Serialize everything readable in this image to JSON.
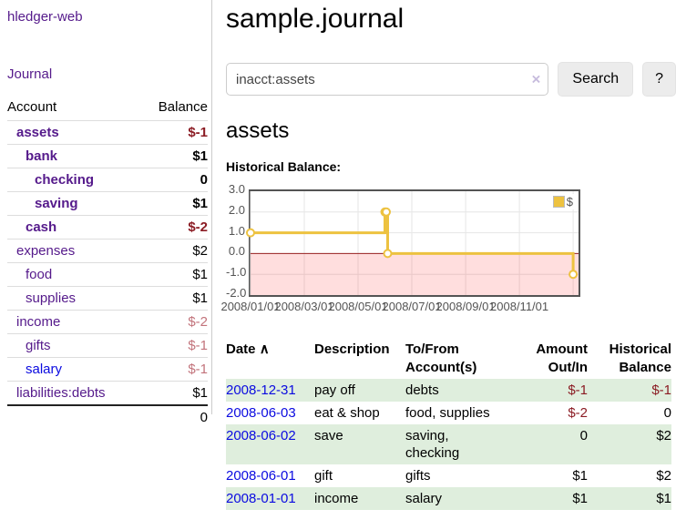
{
  "app": {
    "brand": "hledger-web",
    "nav": [
      {
        "label": "Journal"
      }
    ]
  },
  "colors": {
    "link_purple": "#551A8B",
    "link_blue": "#0b0be0",
    "negative": "#8b1c24",
    "negative_soft": "#c2737b",
    "row_green": "#dfeedd",
    "series_gold": "#edc240",
    "chart_border": "#545454",
    "zero_line": "#992222"
  },
  "sidebar": {
    "accounts": {
      "header": {
        "account": "Account",
        "balance": "Balance"
      },
      "rows": [
        {
          "name": "assets",
          "indent": 1,
          "bold": true,
          "link": "visited",
          "balance": "$-1",
          "balance_tone": "negative"
        },
        {
          "name": "bank",
          "indent": 2,
          "bold": true,
          "link": "visited",
          "balance": "$1",
          "balance_tone": "normal"
        },
        {
          "name": "checking",
          "indent": 3,
          "bold": true,
          "link": "visited",
          "balance": "0",
          "balance_tone": "normal"
        },
        {
          "name": "saving",
          "indent": 3,
          "bold": true,
          "link": "visited",
          "balance": "$1",
          "balance_tone": "normal"
        },
        {
          "name": "cash",
          "indent": 2,
          "bold": true,
          "link": "visited",
          "balance": "$-2",
          "balance_tone": "negative"
        },
        {
          "name": "expenses",
          "indent": 1,
          "bold": false,
          "link": "visited",
          "balance": "$2",
          "balance_tone": "normal"
        },
        {
          "name": "food",
          "indent": 2,
          "bold": false,
          "link": "visited",
          "balance": "$1",
          "balance_tone": "normal"
        },
        {
          "name": "supplies",
          "indent": 2,
          "bold": false,
          "link": "visited",
          "balance": "$1",
          "balance_tone": "normal"
        },
        {
          "name": "income",
          "indent": 1,
          "bold": false,
          "link": "visited",
          "balance": "$-2",
          "balance_tone": "negative-soft"
        },
        {
          "name": "gifts",
          "indent": 2,
          "bold": false,
          "link": "visited",
          "balance": "$-1",
          "balance_tone": "negative-soft"
        },
        {
          "name": "salary",
          "indent": 2,
          "bold": false,
          "link": "unvisited",
          "balance": "$-1",
          "balance_tone": "negative-soft"
        },
        {
          "name": "liabilities:debts",
          "indent": 1,
          "bold": false,
          "link": "visited",
          "balance": "$1",
          "balance_tone": "normal"
        }
      ],
      "total": "0"
    }
  },
  "main": {
    "title": "sample.journal",
    "search": {
      "value": "inacct:assets",
      "clear_icon": "×",
      "button": "Search",
      "help_button": "?"
    },
    "account_heading": "assets",
    "register": {
      "headers": {
        "date": "Date",
        "sort_icon": "∧",
        "description": "Description",
        "accounts_line1": "To/From",
        "accounts_line2": "Account(s)",
        "amount_line1": "Amount",
        "amount_line2": "Out/In",
        "balance_line1": "Historical",
        "balance_line2": "Balance"
      },
      "rows": [
        {
          "date": "2008-12-31",
          "description": "pay off",
          "accounts": [
            "debts"
          ],
          "amount": "$-1",
          "amount_tone": "negative",
          "balance": "$-1",
          "balance_tone": "negative",
          "shaded": true
        },
        {
          "date": "2008-06-03",
          "description": "eat & shop",
          "accounts": [
            "food, supplies"
          ],
          "amount": "$-2",
          "amount_tone": "negative",
          "balance": "0",
          "balance_tone": "normal",
          "shaded": false
        },
        {
          "date": "2008-06-02",
          "description": "save",
          "accounts": [
            "saving,",
            "checking"
          ],
          "amount": "0",
          "amount_tone": "normal",
          "balance": "$2",
          "balance_tone": "normal",
          "shaded": true
        },
        {
          "date": "2008-06-01",
          "description": "gift",
          "accounts": [
            "gifts"
          ],
          "amount": "$1",
          "amount_tone": "normal",
          "balance": "$2",
          "balance_tone": "normal",
          "shaded": false
        },
        {
          "date": "2008-01-01",
          "description": "income",
          "accounts": [
            "salary"
          ],
          "amount": "$1",
          "amount_tone": "normal",
          "balance": "$1",
          "balance_tone": "normal",
          "shaded": true
        }
      ]
    }
  },
  "chart_data": {
    "type": "line",
    "title": "Historical Balance:",
    "xlabel": "",
    "ylabel": "",
    "grid": true,
    "legend_position": "top-right",
    "xlim": [
      0,
      12.2
    ],
    "ylim": [
      -2,
      3
    ],
    "x_unit": "months since 2008-01-01",
    "y_ticks": [
      {
        "v": 3,
        "label": "3.0"
      },
      {
        "v": 2,
        "label": "2.0"
      },
      {
        "v": 1,
        "label": "1.0"
      },
      {
        "v": 0,
        "label": "0.0"
      },
      {
        "v": -1,
        "label": "-1.0"
      },
      {
        "v": -2,
        "label": "-2.0"
      }
    ],
    "x_ticks": [
      {
        "v": 0,
        "label": "2008/01/01"
      },
      {
        "v": 2,
        "label": "2008/03/01"
      },
      {
        "v": 4,
        "label": "2008/05/01"
      },
      {
        "v": 6,
        "label": "2008/07/01"
      },
      {
        "v": 8,
        "label": "2008/09/01"
      },
      {
        "v": 10,
        "label": "2008/11/01"
      },
      {
        "v": 12,
        "label": ""
      }
    ],
    "series": [
      {
        "name": "$",
        "color": "#edc240",
        "steps": true,
        "marker": "circle",
        "points": [
          {
            "date": "2008-01-01",
            "x": 0,
            "y": 1
          },
          {
            "date": "2008-06-01",
            "x": 5,
            "y": 2
          },
          {
            "date": "2008-06-02",
            "x": 5.05,
            "y": 2
          },
          {
            "date": "2008-06-03",
            "x": 5.1,
            "y": 0
          },
          {
            "date": "2008-12-31",
            "x": 12,
            "y": -1
          }
        ]
      }
    ],
    "negative_region": {
      "below": 0,
      "fill": "rgba(255,0,0,0.13)",
      "zero_line_color": "#992222"
    }
  }
}
